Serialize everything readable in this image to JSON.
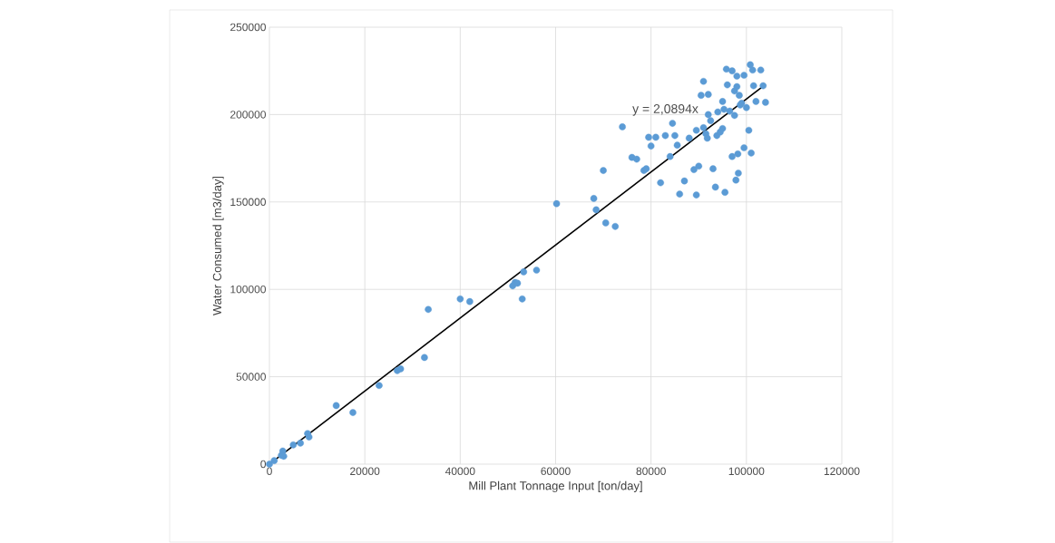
{
  "chart_data": {
    "type": "scatter",
    "xlabel": "Mill Plant Tonnage Input [ton/day]",
    "ylabel": "Water Consumed [m3/day]",
    "xlim": [
      0,
      120000
    ],
    "ylim": [
      0,
      250000
    ],
    "xticks": [
      0,
      20000,
      40000,
      60000,
      80000,
      100000,
      120000
    ],
    "yticks": [
      0,
      50000,
      100000,
      150000,
      200000,
      250000
    ],
    "grid": true,
    "annotations": [
      "y = 2,0894x"
    ],
    "series": [
      {
        "marker": "circle",
        "color": "#5b9bd5",
        "x": [
          0,
          1000,
          2500,
          2800,
          3000,
          5000,
          6500,
          8000,
          8300,
          14000,
          17500,
          23000,
          26800,
          27500,
          32500,
          33300,
          40000,
          42000,
          51000,
          51500,
          52000,
          53000,
          53300,
          56000,
          60200,
          68000,
          68500,
          70000,
          70500,
          72500,
          74000,
          76000,
          77000,
          78500,
          79000,
          79500,
          80000,
          81000,
          82000,
          83000,
          84000,
          84500,
          85000,
          85500,
          86000,
          87000,
          88000,
          89000,
          89500,
          89500,
          90000,
          90500,
          91000,
          91000,
          91500,
          91800,
          92000,
          92000,
          92500,
          93000,
          93500,
          93800,
          94000,
          94500,
          95000,
          95000,
          95300,
          95800,
          95500,
          96000,
          96500,
          97000,
          97000,
          97500,
          97500,
          97800,
          98000,
          98000,
          98200,
          98300,
          98500,
          98700,
          99000,
          99500,
          99500,
          100000,
          100500,
          100800,
          101000,
          101300,
          101500,
          102000,
          103000,
          103500,
          104000
        ],
        "values": [
          0,
          2000,
          5000,
          7500,
          4500,
          11000,
          12000,
          17500,
          15500,
          33500,
          29500,
          45000,
          53500,
          54500,
          61000,
          88500,
          94500,
          93000,
          102000,
          104000,
          103500,
          94500,
          110000,
          111000,
          149000,
          152000,
          145500,
          168000,
          138000,
          136000,
          193000,
          175500,
          174500,
          168000,
          169000,
          187000,
          182000,
          187000,
          161000,
          188000,
          176000,
          195000,
          188000,
          182500,
          154500,
          162000,
          186500,
          168500,
          191000,
          154000,
          170500,
          211000,
          219000,
          192500,
          189000,
          186500,
          200000,
          211500,
          196500,
          169000,
          158500,
          188000,
          201500,
          190000,
          192000,
          207500,
          203000,
          226000,
          155500,
          217000,
          202000,
          225000,
          176000,
          199500,
          213500,
          162500,
          222000,
          216000,
          177500,
          166500,
          211000,
          205500,
          206500,
          181000,
          222500,
          204000,
          191000,
          228500,
          178000,
          225500,
          216500,
          207500,
          225500,
          216500,
          207000
        ]
      },
      {
        "type": "line",
        "marker": "none",
        "color": "#000000",
        "x": [
          0,
          104000
        ],
        "values": [
          0,
          217300
        ]
      }
    ]
  }
}
